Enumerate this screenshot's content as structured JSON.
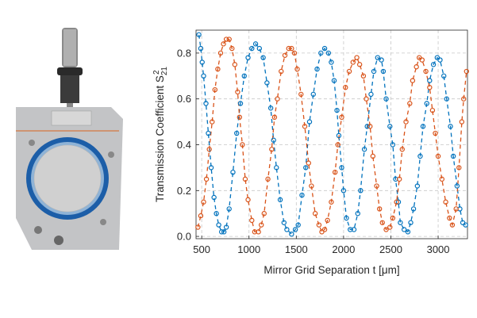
{
  "chart_data": {
    "type": "scatter",
    "title": "",
    "xlabel": "Mirror Grid Separation t [μm]",
    "ylabel_main": "Transmission Coefficient S",
    "ylabel_sub": "21",
    "ylabel_sup": "2",
    "xlim": [
      440,
      3310
    ],
    "ylim": [
      -0.01,
      0.9
    ],
    "xticks": [
      "500",
      "1000",
      "1500",
      "2000",
      "2500",
      "3000"
    ],
    "yticks": [
      "0.0",
      "0.2",
      "0.4",
      "0.6",
      "0.8"
    ],
    "grid": true,
    "grid_style": "dashed",
    "series": [
      {
        "color": "#0072BD",
        "markers": "open circles",
        "fit": "dashed",
        "values": [
          [
            470,
            0.88
          ],
          [
            490,
            0.82
          ],
          [
            505,
            0.76
          ],
          [
            520,
            0.7
          ],
          [
            545,
            0.58
          ],
          [
            570,
            0.45
          ],
          [
            600,
            0.3
          ],
          [
            630,
            0.17
          ],
          [
            655,
            0.1
          ],
          [
            680,
            0.05
          ],
          [
            710,
            0.02
          ],
          [
            735,
            0.02
          ],
          [
            760,
            0.04
          ],
          [
            790,
            0.12
          ],
          [
            830,
            0.28
          ],
          [
            870,
            0.45
          ],
          [
            910,
            0.58
          ],
          [
            950,
            0.7
          ],
          [
            990,
            0.78
          ],
          [
            1030,
            0.82
          ],
          [
            1070,
            0.84
          ],
          [
            1110,
            0.82
          ],
          [
            1150,
            0.78
          ],
          [
            1190,
            0.67
          ],
          [
            1230,
            0.56
          ],
          [
            1260,
            0.42
          ],
          [
            1290,
            0.3
          ],
          [
            1330,
            0.16
          ],
          [
            1370,
            0.06
          ],
          [
            1400,
            0.03
          ],
          [
            1450,
            0.01
          ],
          [
            1490,
            0.03
          ],
          [
            1520,
            0.05
          ],
          [
            1560,
            0.18
          ],
          [
            1600,
            0.3
          ],
          [
            1640,
            0.5
          ],
          [
            1680,
            0.62
          ],
          [
            1720,
            0.73
          ],
          [
            1760,
            0.8
          ],
          [
            1800,
            0.82
          ],
          [
            1840,
            0.8
          ],
          [
            1870,
            0.76
          ],
          [
            1900,
            0.68
          ],
          [
            1930,
            0.55
          ],
          [
            1950,
            0.44
          ],
          [
            1980,
            0.3
          ],
          [
            2000,
            0.2
          ],
          [
            2030,
            0.08
          ],
          [
            2070,
            0.03
          ],
          [
            2110,
            0.03
          ],
          [
            2150,
            0.1
          ],
          [
            2180,
            0.2
          ],
          [
            2220,
            0.38
          ],
          [
            2250,
            0.48
          ],
          [
            2290,
            0.62
          ],
          [
            2320,
            0.72
          ],
          [
            2360,
            0.78
          ],
          [
            2400,
            0.77
          ],
          [
            2420,
            0.72
          ],
          [
            2450,
            0.6
          ],
          [
            2490,
            0.48
          ],
          [
            2520,
            0.4
          ],
          [
            2550,
            0.25
          ],
          [
            2580,
            0.15
          ],
          [
            2600,
            0.06
          ],
          [
            2640,
            0.03
          ],
          [
            2680,
            0.02
          ],
          [
            2710,
            0.06
          ],
          [
            2740,
            0.12
          ],
          [
            2780,
            0.22
          ],
          [
            2810,
            0.35
          ],
          [
            2840,
            0.48
          ],
          [
            2880,
            0.58
          ],
          [
            2910,
            0.68
          ],
          [
            2950,
            0.75
          ],
          [
            2990,
            0.78
          ],
          [
            3020,
            0.77
          ],
          [
            3060,
            0.7
          ],
          [
            3090,
            0.6
          ],
          [
            3130,
            0.48
          ],
          [
            3160,
            0.35
          ],
          [
            3200,
            0.22
          ],
          [
            3230,
            0.12
          ],
          [
            3260,
            0.06
          ],
          [
            3290,
            0.05
          ]
        ]
      },
      {
        "color": "#D95319",
        "markers": "open circles",
        "fit": "dashed",
        "values": [
          [
            460,
            0.04
          ],
          [
            490,
            0.09
          ],
          [
            520,
            0.15
          ],
          [
            550,
            0.25
          ],
          [
            580,
            0.38
          ],
          [
            610,
            0.5
          ],
          [
            640,
            0.64
          ],
          [
            670,
            0.73
          ],
          [
            700,
            0.8
          ],
          [
            730,
            0.84
          ],
          [
            760,
            0.86
          ],
          [
            790,
            0.86
          ],
          [
            820,
            0.82
          ],
          [
            850,
            0.75
          ],
          [
            880,
            0.63
          ],
          [
            900,
            0.52
          ],
          [
            930,
            0.4
          ],
          [
            960,
            0.25
          ],
          [
            990,
            0.16
          ],
          [
            1030,
            0.07
          ],
          [
            1060,
            0.02
          ],
          [
            1100,
            0.02
          ],
          [
            1130,
            0.05
          ],
          [
            1160,
            0.1
          ],
          [
            1200,
            0.25
          ],
          [
            1240,
            0.38
          ],
          [
            1270,
            0.52
          ],
          [
            1300,
            0.6
          ],
          [
            1340,
            0.72
          ],
          [
            1380,
            0.79
          ],
          [
            1420,
            0.82
          ],
          [
            1450,
            0.82
          ],
          [
            1480,
            0.8
          ],
          [
            1510,
            0.73
          ],
          [
            1550,
            0.62
          ],
          [
            1590,
            0.48
          ],
          [
            1630,
            0.32
          ],
          [
            1660,
            0.22
          ],
          [
            1700,
            0.1
          ],
          [
            1740,
            0.05
          ],
          [
            1770,
            0.02
          ],
          [
            1800,
            0.03
          ],
          [
            1830,
            0.07
          ],
          [
            1870,
            0.15
          ],
          [
            1910,
            0.28
          ],
          [
            1940,
            0.4
          ],
          [
            1980,
            0.52
          ],
          [
            2020,
            0.65
          ],
          [
            2060,
            0.72
          ],
          [
            2100,
            0.76
          ],
          [
            2140,
            0.78
          ],
          [
            2170,
            0.75
          ],
          [
            2210,
            0.7
          ],
          [
            2240,
            0.6
          ],
          [
            2280,
            0.48
          ],
          [
            2310,
            0.35
          ],
          [
            2350,
            0.22
          ],
          [
            2380,
            0.12
          ],
          [
            2410,
            0.06
          ],
          [
            2450,
            0.03
          ],
          [
            2490,
            0.04
          ],
          [
            2520,
            0.08
          ],
          [
            2560,
            0.15
          ],
          [
            2590,
            0.25
          ],
          [
            2620,
            0.38
          ],
          [
            2660,
            0.5
          ],
          [
            2700,
            0.58
          ],
          [
            2730,
            0.68
          ],
          [
            2770,
            0.74
          ],
          [
            2800,
            0.78
          ],
          [
            2830,
            0.77
          ],
          [
            2870,
            0.72
          ],
          [
            2910,
            0.65
          ],
          [
            2940,
            0.55
          ],
          [
            2970,
            0.45
          ],
          [
            3000,
            0.35
          ],
          [
            3040,
            0.25
          ],
          [
            3080,
            0.15
          ],
          [
            3120,
            0.08
          ],
          [
            3150,
            0.05
          ],
          [
            3190,
            0.12
          ],
          [
            3220,
            0.3
          ],
          [
            3250,
            0.5
          ],
          [
            3270,
            0.6
          ],
          [
            3300,
            0.72
          ]
        ]
      }
    ]
  }
}
